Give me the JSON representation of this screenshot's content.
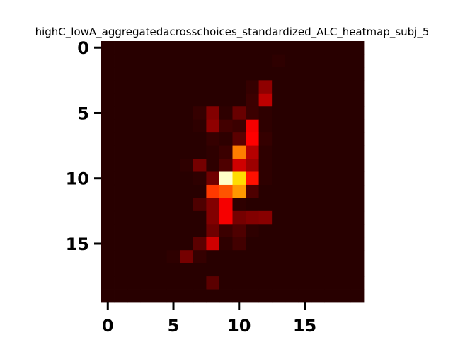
{
  "chart_data": {
    "type": "heatmap",
    "title": "highC_lowA_aggregatedacrosschoices_standardized_ALC_heatmap_subj_5",
    "xlabel": "",
    "ylabel": "",
    "colormap": "hot",
    "n_rows": 20,
    "n_cols": 20,
    "xticks": [
      0,
      5,
      10,
      15
    ],
    "yticks": [
      0,
      5,
      10,
      15
    ],
    "xlim": [
      -0.5,
      19.5
    ],
    "ylim": [
      19.5,
      -0.5
    ],
    "vmin": 0,
    "vmax": 1,
    "grid": false,
    "values": [
      [
        0.02,
        0.02,
        0.02,
        0.02,
        0.02,
        0.02,
        0.02,
        0.02,
        0.02,
        0.02,
        0.02,
        0.02,
        0.02,
        0.02,
        0.02,
        0.02,
        0.02,
        0.02,
        0.02,
        0.02
      ],
      [
        0.02,
        0.02,
        0.02,
        0.02,
        0.02,
        0.02,
        0.02,
        0.02,
        0.02,
        0.02,
        0.02,
        0.02,
        0.02,
        0.03,
        0.02,
        0.02,
        0.02,
        0.02,
        0.02,
        0.02
      ],
      [
        0.02,
        0.02,
        0.02,
        0.02,
        0.02,
        0.02,
        0.02,
        0.02,
        0.02,
        0.02,
        0.02,
        0.02,
        0.02,
        0.02,
        0.02,
        0.02,
        0.02,
        0.02,
        0.02,
        0.02
      ],
      [
        0.02,
        0.02,
        0.02,
        0.02,
        0.02,
        0.02,
        0.02,
        0.02,
        0.02,
        0.02,
        0.02,
        0.04,
        0.18,
        0.02,
        0.02,
        0.02,
        0.02,
        0.02,
        0.02,
        0.02
      ],
      [
        0.02,
        0.02,
        0.02,
        0.02,
        0.02,
        0.02,
        0.02,
        0.02,
        0.02,
        0.02,
        0.02,
        0.05,
        0.25,
        0.02,
        0.02,
        0.02,
        0.02,
        0.02,
        0.02,
        0.02
      ],
      [
        0.02,
        0.02,
        0.02,
        0.02,
        0.02,
        0.02,
        0.02,
        0.04,
        0.16,
        0.03,
        0.12,
        0.05,
        0.03,
        0.02,
        0.02,
        0.02,
        0.02,
        0.02,
        0.02,
        0.02
      ],
      [
        0.02,
        0.02,
        0.02,
        0.02,
        0.02,
        0.02,
        0.02,
        0.03,
        0.18,
        0.06,
        0.05,
        0.34,
        0.03,
        0.02,
        0.02,
        0.02,
        0.02,
        0.02,
        0.02,
        0.02
      ],
      [
        0.02,
        0.02,
        0.02,
        0.02,
        0.02,
        0.02,
        0.02,
        0.02,
        0.04,
        0.03,
        0.1,
        0.38,
        0.04,
        0.02,
        0.02,
        0.02,
        0.02,
        0.02,
        0.02,
        0.02
      ],
      [
        0.02,
        0.02,
        0.02,
        0.02,
        0.02,
        0.02,
        0.02,
        0.02,
        0.03,
        0.05,
        0.58,
        0.24,
        0.03,
        0.02,
        0.02,
        0.02,
        0.02,
        0.02,
        0.02,
        0.02
      ],
      [
        0.02,
        0.02,
        0.02,
        0.02,
        0.02,
        0.02,
        0.03,
        0.14,
        0.03,
        0.08,
        0.28,
        0.2,
        0.03,
        0.02,
        0.02,
        0.02,
        0.02,
        0.02,
        0.02,
        0.02
      ],
      [
        0.02,
        0.02,
        0.02,
        0.02,
        0.02,
        0.02,
        0.02,
        0.03,
        0.13,
        0.95,
        0.72,
        0.42,
        0.03,
        0.02,
        0.02,
        0.02,
        0.02,
        0.02,
        0.02,
        0.02
      ],
      [
        0.02,
        0.02,
        0.02,
        0.02,
        0.02,
        0.02,
        0.02,
        0.02,
        0.48,
        0.52,
        0.62,
        0.08,
        0.02,
        0.02,
        0.02,
        0.02,
        0.02,
        0.02,
        0.02,
        0.02
      ],
      [
        0.02,
        0.02,
        0.02,
        0.02,
        0.02,
        0.02,
        0.02,
        0.08,
        0.16,
        0.34,
        0.03,
        0.02,
        0.02,
        0.02,
        0.02,
        0.02,
        0.02,
        0.02,
        0.02,
        0.02
      ],
      [
        0.02,
        0.02,
        0.02,
        0.02,
        0.02,
        0.02,
        0.02,
        0.02,
        0.16,
        0.34,
        0.14,
        0.16,
        0.17,
        0.02,
        0.02,
        0.02,
        0.02,
        0.02,
        0.02,
        0.02
      ],
      [
        0.02,
        0.02,
        0.02,
        0.02,
        0.02,
        0.02,
        0.02,
        0.02,
        0.13,
        0.05,
        0.08,
        0.03,
        0.02,
        0.02,
        0.02,
        0.02,
        0.02,
        0.02,
        0.02,
        0.02
      ],
      [
        0.02,
        0.02,
        0.02,
        0.02,
        0.02,
        0.02,
        0.02,
        0.1,
        0.28,
        0.03,
        0.06,
        0.02,
        0.02,
        0.02,
        0.02,
        0.02,
        0.02,
        0.02,
        0.02,
        0.02
      ],
      [
        0.02,
        0.02,
        0.02,
        0.02,
        0.02,
        0.03,
        0.14,
        0.04,
        0.02,
        0.02,
        0.02,
        0.02,
        0.02,
        0.02,
        0.02,
        0.02,
        0.02,
        0.02,
        0.02,
        0.02
      ],
      [
        0.02,
        0.02,
        0.02,
        0.02,
        0.02,
        0.02,
        0.02,
        0.02,
        0.02,
        0.02,
        0.02,
        0.02,
        0.02,
        0.02,
        0.02,
        0.02,
        0.02,
        0.02,
        0.02,
        0.02
      ],
      [
        0.02,
        0.02,
        0.02,
        0.02,
        0.02,
        0.02,
        0.02,
        0.02,
        0.1,
        0.02,
        0.02,
        0.02,
        0.02,
        0.02,
        0.02,
        0.02,
        0.02,
        0.02,
        0.02,
        0.02
      ],
      [
        0.02,
        0.02,
        0.02,
        0.02,
        0.02,
        0.02,
        0.02,
        0.02,
        0.02,
        0.02,
        0.02,
        0.02,
        0.02,
        0.02,
        0.02,
        0.02,
        0.02,
        0.02,
        0.02,
        0.02
      ]
    ]
  }
}
